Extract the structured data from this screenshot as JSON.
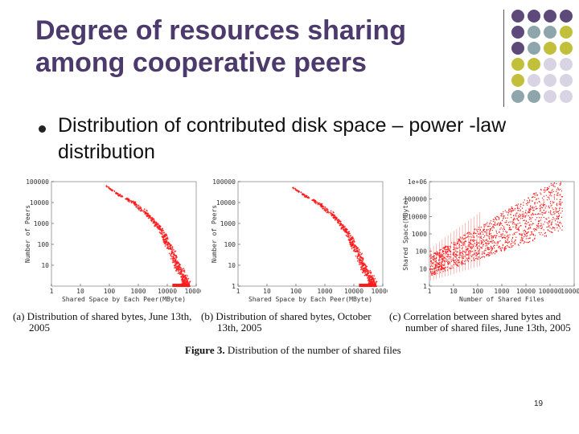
{
  "slide": {
    "title_line1": "Degree of resources sharing",
    "title_line2": "among cooperative peers",
    "bullet": "Distribution of contributed disk space – power -law distribution",
    "page_number": "19",
    "colors": {
      "title": "#4b3a6b",
      "purple": "#5e4a7a",
      "teal": "#8ea6ab",
      "olive": "#c2c03a",
      "lilac": "#d8d4e4",
      "plot_red": "#ff1a1a"
    }
  },
  "figure": {
    "caption_label": "Figure 3.",
    "caption_text": " Distribution of the number of shared files",
    "panels": [
      {
        "caption_line1": "(a) Distribution of shared bytes, June 13th,",
        "caption_line2": "2005"
      },
      {
        "caption_line1": "(b) Distribution of shared bytes, October",
        "caption_line2": "13th, 2005"
      },
      {
        "caption_line1": "(c) Correlation between shared bytes and",
        "caption_line2": "number of shared files, June 13th, 2005"
      }
    ]
  },
  "chart_data": [
    {
      "type": "scatter",
      "xlabel": "Shared Space by Each Peer(MByte)",
      "ylabel": "Number of Peers",
      "x_ticks": [
        "1",
        "10",
        "100",
        "1000",
        "10000",
        "100000"
      ],
      "y_ticks": [
        "100000",
        "10000",
        "1000",
        "100",
        "10"
      ],
      "log_scale": {
        "x": true,
        "y": true
      },
      "xlim": [
        1,
        100000
      ],
      "ylim": [
        1,
        100000
      ],
      "points": [
        [
          80,
          60000
        ],
        [
          120,
          40000
        ],
        [
          200,
          25000
        ],
        [
          400,
          15000
        ],
        [
          700,
          10000
        ],
        [
          1000,
          6000
        ],
        [
          2000,
          3000
        ],
        [
          3000,
          1500
        ],
        [
          5000,
          700
        ],
        [
          8000,
          250
        ],
        [
          10000,
          120
        ],
        [
          15000,
          40
        ],
        [
          20000,
          12
        ],
        [
          30000,
          5
        ],
        [
          40000,
          2
        ],
        [
          50000,
          1
        ]
      ]
    },
    {
      "type": "scatter",
      "xlabel": "Shared Space by Each Peer(MByte)",
      "ylabel": "Number of Peers",
      "x_ticks": [
        "1",
        "10",
        "100",
        "1000",
        "10000",
        "100000"
      ],
      "y_ticks": [
        "100000",
        "10000",
        "1000",
        "100",
        "10",
        "1"
      ],
      "log_scale": {
        "x": true,
        "y": true
      },
      "xlim": [
        1,
        100000
      ],
      "ylim": [
        1,
        100000
      ],
      "points": [
        [
          80,
          50000
        ],
        [
          120,
          35000
        ],
        [
          200,
          22000
        ],
        [
          400,
          13000
        ],
        [
          700,
          8000
        ],
        [
          1000,
          5000
        ],
        [
          2000,
          2500
        ],
        [
          3000,
          1200
        ],
        [
          5000,
          500
        ],
        [
          8000,
          180
        ],
        [
          10000,
          90
        ],
        [
          15000,
          30
        ],
        [
          20000,
          10
        ],
        [
          30000,
          4
        ],
        [
          40000,
          2
        ],
        [
          50000,
          1
        ]
      ]
    },
    {
      "type": "scatter",
      "xlabel": "Number of Shared Files",
      "ylabel": "Shared Space(MByte)",
      "x_ticks": [
        "1",
        "10",
        "100",
        "1000",
        "10000",
        "100000",
        "1000000"
      ],
      "y_ticks": [
        "1e+06",
        "100000",
        "10000",
        "1000",
        "100",
        "10",
        "1"
      ],
      "log_scale": {
        "x": true,
        "y": true
      },
      "xlim": [
        1,
        1000000
      ],
      "ylim": [
        1,
        1000000
      ]
    }
  ]
}
